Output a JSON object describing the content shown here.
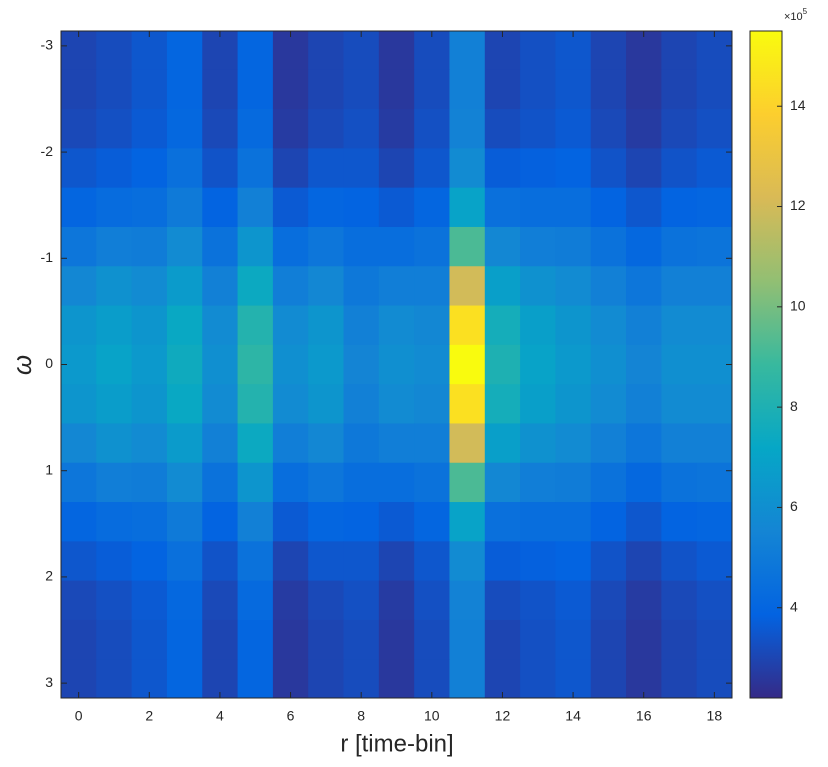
{
  "chart_data": {
    "type": "heatmap",
    "xlabel": "r [time-bin]",
    "ylabel": "ω",
    "x": [
      0,
      1,
      2,
      3,
      4,
      5,
      6,
      7,
      8,
      9,
      10,
      11,
      12,
      13,
      14,
      15,
      16,
      17,
      18
    ],
    "y": [
      -2.96,
      -2.59,
      -2.22,
      -1.85,
      -1.48,
      -1.11,
      -0.74,
      -0.37,
      0,
      0.37,
      0.74,
      1.11,
      1.48,
      1.85,
      2.22,
      2.59,
      2.96
    ],
    "z": [
      [
        3.0,
        3.2,
        3.5,
        4.0,
        3.0,
        4.0,
        2.6,
        3.0,
        3.2,
        2.6,
        3.2,
        5.3,
        3.0,
        3.3,
        3.5,
        3.0,
        2.6,
        3.0,
        3.2
      ],
      [
        3.0,
        3.2,
        3.5,
        4.0,
        3.0,
        4.0,
        2.6,
        3.0,
        3.2,
        2.6,
        3.2,
        5.3,
        3.0,
        3.3,
        3.5,
        3.0,
        2.6,
        3.0,
        3.2
      ],
      [
        3.1,
        3.3,
        3.6,
        4.1,
        3.1,
        4.2,
        2.7,
        3.1,
        3.3,
        2.7,
        3.3,
        5.4,
        3.2,
        3.4,
        3.6,
        3.1,
        2.7,
        3.1,
        3.3
      ],
      [
        3.5,
        3.7,
        3.9,
        4.5,
        3.4,
        4.6,
        3.0,
        3.5,
        3.5,
        3.0,
        3.5,
        5.8,
        3.7,
        3.8,
        3.9,
        3.4,
        3.0,
        3.4,
        3.6
      ],
      [
        4.0,
        4.3,
        4.4,
        5.0,
        3.9,
        5.3,
        3.6,
        4.0,
        3.9,
        3.6,
        4.0,
        7.0,
        4.5,
        4.4,
        4.4,
        3.9,
        3.5,
        3.9,
        4.0
      ],
      [
        4.8,
        5.2,
        5.1,
        5.8,
        4.6,
        6.3,
        4.4,
        4.8,
        4.4,
        4.4,
        4.6,
        9.2,
        5.6,
        5.2,
        5.1,
        4.6,
        4.1,
        4.6,
        4.7
      ],
      [
        5.6,
        6.1,
        5.8,
        6.6,
        5.3,
        7.4,
        5.2,
        5.6,
        4.9,
        5.2,
        5.2,
        12.0,
        6.8,
        6.1,
        5.8,
        5.3,
        4.8,
        5.3,
        5.3
      ],
      [
        6.3,
        6.7,
        6.3,
        7.3,
        5.8,
        8.2,
        5.8,
        6.3,
        5.3,
        5.8,
        5.6,
        14.5,
        7.7,
        6.8,
        6.3,
        5.8,
        5.3,
        5.8,
        5.8
      ],
      [
        6.5,
        7.0,
        6.5,
        7.5,
        6.0,
        8.5,
        6.0,
        6.5,
        5.5,
        6.0,
        5.8,
        15.5,
        8.0,
        7.0,
        6.5,
        6.0,
        5.5,
        6.0,
        6.0
      ],
      [
        6.3,
        6.7,
        6.3,
        7.3,
        5.8,
        8.2,
        5.8,
        6.3,
        5.3,
        5.8,
        5.6,
        14.5,
        7.7,
        6.8,
        6.3,
        5.8,
        5.3,
        5.8,
        5.8
      ],
      [
        5.6,
        6.1,
        5.8,
        6.6,
        5.3,
        7.4,
        5.2,
        5.6,
        4.9,
        5.2,
        5.2,
        12.0,
        6.8,
        6.1,
        5.8,
        5.3,
        4.8,
        5.3,
        5.3
      ],
      [
        4.8,
        5.2,
        5.1,
        5.8,
        4.6,
        6.3,
        4.4,
        4.8,
        4.4,
        4.4,
        4.6,
        9.2,
        5.6,
        5.2,
        5.1,
        4.6,
        4.1,
        4.6,
        4.7
      ],
      [
        4.0,
        4.3,
        4.4,
        5.0,
        3.9,
        5.3,
        3.6,
        4.0,
        3.9,
        3.6,
        4.0,
        7.0,
        4.5,
        4.4,
        4.4,
        3.9,
        3.5,
        3.9,
        4.0
      ],
      [
        3.5,
        3.7,
        3.9,
        4.5,
        3.4,
        4.6,
        3.0,
        3.5,
        3.5,
        3.0,
        3.5,
        5.8,
        3.7,
        3.8,
        3.9,
        3.4,
        3.0,
        3.4,
        3.6
      ],
      [
        3.1,
        3.3,
        3.6,
        4.1,
        3.1,
        4.2,
        2.7,
        3.1,
        3.3,
        2.7,
        3.3,
        5.4,
        3.2,
        3.4,
        3.6,
        3.1,
        2.7,
        3.1,
        3.3
      ],
      [
        3.0,
        3.2,
        3.5,
        4.0,
        3.0,
        4.0,
        2.6,
        3.0,
        3.2,
        2.6,
        3.2,
        5.3,
        3.0,
        3.3,
        3.5,
        3.0,
        2.6,
        3.0,
        3.2
      ],
      [
        3.0,
        3.2,
        3.5,
        4.0,
        3.0,
        4.0,
        2.6,
        3.0,
        3.2,
        2.6,
        3.2,
        5.3,
        3.0,
        3.3,
        3.5,
        3.0,
        2.6,
        3.0,
        3.2
      ]
    ],
    "xlim": [
      -0.5,
      18.5
    ],
    "xticks": [
      0,
      2,
      4,
      6,
      8,
      10,
      12,
      14,
      16,
      18
    ],
    "ylim": [
      -3.14,
      3.14
    ],
    "yticks": [
      -3,
      -2,
      -1,
      0,
      1,
      2,
      3
    ],
    "y_reversed": true,
    "colormap": "parula",
    "clim": [
      2.2,
      15.5
    ],
    "cticks": [
      4,
      6,
      8,
      10,
      12,
      14
    ],
    "colorbar_multiplier": {
      "base": "×10",
      "exponent": "5"
    }
  }
}
